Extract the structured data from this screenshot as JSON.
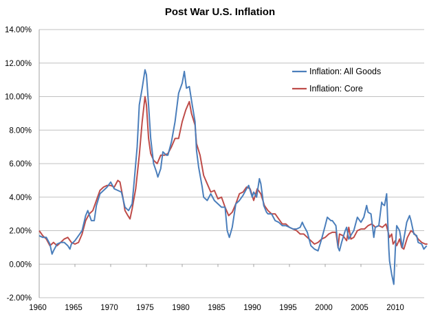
{
  "chart_data": {
    "type": "line",
    "title": "Post War U.S. Inflation",
    "xlabel": "",
    "ylabel": "",
    "xlim": [
      1960,
      2014
    ],
    "ylim": [
      -2,
      14
    ],
    "x_ticks": [
      "1960",
      "1965",
      "1970",
      "1975",
      "1980",
      "1985",
      "1990",
      "1995",
      "2000",
      "2005",
      "2010"
    ],
    "y_ticks": [
      "-2.00%",
      "0.00%",
      "2.00%",
      "4.00%",
      "6.00%",
      "8.00%",
      "10.00%",
      "12.00%",
      "14.00%"
    ],
    "grid": "horizontal",
    "legend_position": "top-right",
    "series": [
      {
        "name": "Inflation: All Goods",
        "color": "#4A7EBB",
        "points": [
          [
            1960,
            1.7
          ],
          [
            1960.5,
            1.6
          ],
          [
            1961,
            1.6
          ],
          [
            1961.5,
            1.2
          ],
          [
            1961.8,
            0.6
          ],
          [
            1962,
            0.8
          ],
          [
            1962.5,
            1.2
          ],
          [
            1963,
            1.3
          ],
          [
            1963.5,
            1.3
          ],
          [
            1964,
            1.1
          ],
          [
            1964.3,
            0.9
          ],
          [
            1964.5,
            1.2
          ],
          [
            1965,
            1.4
          ],
          [
            1965.5,
            1.7
          ],
          [
            1966,
            2.0
          ],
          [
            1966.5,
            2.9
          ],
          [
            1966.8,
            3.2
          ],
          [
            1967.3,
            2.6
          ],
          [
            1967.7,
            2.6
          ],
          [
            1968,
            3.5
          ],
          [
            1968.5,
            4.2
          ],
          [
            1969,
            4.4
          ],
          [
            1969.5,
            4.6
          ],
          [
            1970,
            4.9
          ],
          [
            1970.5,
            4.5
          ],
          [
            1971,
            4.4
          ],
          [
            1971.5,
            4.3
          ],
          [
            1972,
            3.4
          ],
          [
            1972.5,
            3.2
          ],
          [
            1973,
            3.6
          ],
          [
            1973.3,
            5.0
          ],
          [
            1973.7,
            7.0
          ],
          [
            1974,
            9.5
          ],
          [
            1974.4,
            10.5
          ],
          [
            1974.8,
            11.6
          ],
          [
            1975,
            11.3
          ],
          [
            1975.3,
            9.5
          ],
          [
            1975.6,
            7.5
          ],
          [
            1976,
            6.0
          ],
          [
            1976.4,
            5.5
          ],
          [
            1976.6,
            5.2
          ],
          [
            1977,
            5.7
          ],
          [
            1977.3,
            6.7
          ],
          [
            1977.8,
            6.5
          ],
          [
            1978,
            6.5
          ],
          [
            1978.5,
            7.3
          ],
          [
            1979,
            8.5
          ],
          [
            1979.5,
            10.2
          ],
          [
            1980,
            10.8
          ],
          [
            1980.3,
            11.5
          ],
          [
            1980.6,
            10.5
          ],
          [
            1981,
            10.6
          ],
          [
            1981.4,
            9.5
          ],
          [
            1981.8,
            8.5
          ],
          [
            1982,
            6.8
          ],
          [
            1982.3,
            5.8
          ],
          [
            1982.8,
            4.6
          ],
          [
            1983,
            4.0
          ],
          [
            1983.5,
            3.8
          ],
          [
            1984,
            4.2
          ],
          [
            1984.5,
            3.8
          ],
          [
            1985,
            3.6
          ],
          [
            1985.5,
            3.4
          ],
          [
            1986,
            3.4
          ],
          [
            1986.3,
            2.0
          ],
          [
            1986.6,
            1.6
          ],
          [
            1987,
            2.2
          ],
          [
            1987.5,
            3.6
          ],
          [
            1988,
            3.8
          ],
          [
            1988.5,
            4.1
          ],
          [
            1989,
            4.5
          ],
          [
            1989.3,
            4.7
          ],
          [
            1989.8,
            4.0
          ],
          [
            1990,
            4.3
          ],
          [
            1990.4,
            4.0
          ],
          [
            1990.8,
            5.1
          ],
          [
            1991,
            4.8
          ],
          [
            1991.4,
            3.5
          ],
          [
            1991.8,
            3.1
          ],
          [
            1992,
            3.0
          ],
          [
            1992.5,
            3.0
          ],
          [
            1993,
            2.6
          ],
          [
            1993.5,
            2.5
          ],
          [
            1994,
            2.3
          ],
          [
            1994.5,
            2.3
          ],
          [
            1995,
            2.2
          ],
          [
            1995.5,
            2.1
          ],
          [
            1996,
            2.1
          ],
          [
            1996.5,
            2.2
          ],
          [
            1996.8,
            2.5
          ],
          [
            1997,
            2.3
          ],
          [
            1997.5,
            1.9
          ],
          [
            1998,
            1.1
          ],
          [
            1998.5,
            0.9
          ],
          [
            1999,
            0.8
          ],
          [
            1999.5,
            1.5
          ],
          [
            2000,
            2.3
          ],
          [
            2000.3,
            2.8
          ],
          [
            2000.8,
            2.6
          ],
          [
            2001,
            2.6
          ],
          [
            2001.5,
            2.3
          ],
          [
            2001.8,
            1.0
          ],
          [
            2002,
            0.8
          ],
          [
            2002.3,
            1.3
          ],
          [
            2002.8,
            2.0
          ],
          [
            2003,
            2.2
          ],
          [
            2003.3,
            1.5
          ],
          [
            2003.7,
            1.8
          ],
          [
            2004,
            2.0
          ],
          [
            2004.5,
            2.8
          ],
          [
            2005,
            2.5
          ],
          [
            2005.4,
            2.8
          ],
          [
            2005.8,
            3.5
          ],
          [
            2006,
            3.1
          ],
          [
            2006.4,
            3.0
          ],
          [
            2006.8,
            1.6
          ],
          [
            2007,
            2.2
          ],
          [
            2007.5,
            2.3
          ],
          [
            2007.9,
            3.7
          ],
          [
            2008,
            3.6
          ],
          [
            2008.3,
            3.5
          ],
          [
            2008.6,
            4.2
          ],
          [
            2008.9,
            0.9
          ],
          [
            2009,
            0.2
          ],
          [
            2009.3,
            -0.6
          ],
          [
            2009.6,
            -1.2
          ],
          [
            2009.8,
            0.8
          ],
          [
            2010,
            2.3
          ],
          [
            2010.4,
            2.0
          ],
          [
            2010.8,
            1.0
          ],
          [
            2011,
            1.5
          ],
          [
            2011.4,
            2.5
          ],
          [
            2011.8,
            2.9
          ],
          [
            2012,
            2.6
          ],
          [
            2012.4,
            1.8
          ],
          [
            2012.8,
            1.7
          ],
          [
            2013,
            1.3
          ],
          [
            2013.5,
            1.2
          ],
          [
            2013.8,
            0.9
          ],
          [
            2014.2,
            1.1
          ]
        ]
      },
      {
        "name": "Inflation: Core",
        "color": "#BE4B48",
        "points": [
          [
            1960,
            2.0
          ],
          [
            1960.5,
            1.7
          ],
          [
            1961,
            1.5
          ],
          [
            1961.5,
            1.1
          ],
          [
            1962,
            1.3
          ],
          [
            1962.5,
            1.1
          ],
          [
            1963,
            1.3
          ],
          [
            1963.5,
            1.5
          ],
          [
            1964,
            1.6
          ],
          [
            1964.5,
            1.3
          ],
          [
            1965,
            1.2
          ],
          [
            1965.5,
            1.3
          ],
          [
            1966,
            1.8
          ],
          [
            1966.5,
            2.6
          ],
          [
            1967,
            3.0
          ],
          [
            1967.5,
            3.2
          ],
          [
            1968,
            3.8
          ],
          [
            1968.5,
            4.4
          ],
          [
            1969,
            4.6
          ],
          [
            1969.5,
            4.7
          ],
          [
            1970,
            4.7
          ],
          [
            1970.5,
            4.6
          ],
          [
            1971,
            5.0
          ],
          [
            1971.3,
            4.9
          ],
          [
            1971.7,
            4.0
          ],
          [
            1972,
            3.2
          ],
          [
            1972.4,
            2.9
          ],
          [
            1972.7,
            2.7
          ],
          [
            1973,
            3.3
          ],
          [
            1973.5,
            4.5
          ],
          [
            1974,
            6.5
          ],
          [
            1974.4,
            8.5
          ],
          [
            1974.8,
            10.0
          ],
          [
            1975,
            9.5
          ],
          [
            1975.3,
            7.5
          ],
          [
            1975.6,
            6.6
          ],
          [
            1976,
            6.2
          ],
          [
            1976.5,
            6.0
          ],
          [
            1977,
            6.5
          ],
          [
            1977.5,
            6.5
          ],
          [
            1978,
            6.6
          ],
          [
            1978.5,
            7.0
          ],
          [
            1979,
            7.5
          ],
          [
            1979.5,
            7.5
          ],
          [
            1980,
            8.5
          ],
          [
            1980.5,
            9.2
          ],
          [
            1981,
            9.7
          ],
          [
            1981.3,
            9.0
          ],
          [
            1981.8,
            8.3
          ],
          [
            1982,
            7.2
          ],
          [
            1982.5,
            6.5
          ],
          [
            1983,
            5.3
          ],
          [
            1983.5,
            4.8
          ],
          [
            1984,
            4.3
          ],
          [
            1984.5,
            4.4
          ],
          [
            1985,
            3.9
          ],
          [
            1985.5,
            4.0
          ],
          [
            1986,
            3.4
          ],
          [
            1986.5,
            2.9
          ],
          [
            1987,
            3.1
          ],
          [
            1987.5,
            3.6
          ],
          [
            1988,
            4.2
          ],
          [
            1988.5,
            4.3
          ],
          [
            1989,
            4.6
          ],
          [
            1989.5,
            4.5
          ],
          [
            1990,
            3.8
          ],
          [
            1990.5,
            4.5
          ],
          [
            1991,
            4.2
          ],
          [
            1991.5,
            3.5
          ],
          [
            1992,
            3.2
          ],
          [
            1992.5,
            3.0
          ],
          [
            1993,
            3.0
          ],
          [
            1993.5,
            2.7
          ],
          [
            1994,
            2.4
          ],
          [
            1994.5,
            2.4
          ],
          [
            1995,
            2.2
          ],
          [
            1995.5,
            2.1
          ],
          [
            1996,
            2.0
          ],
          [
            1996.5,
            1.8
          ],
          [
            1997,
            1.8
          ],
          [
            1997.5,
            1.6
          ],
          [
            1998,
            1.4
          ],
          [
            1998.5,
            1.2
          ],
          [
            1999,
            1.3
          ],
          [
            1999.5,
            1.5
          ],
          [
            2000,
            1.6
          ],
          [
            2000.5,
            1.8
          ],
          [
            2001,
            1.9
          ],
          [
            2001.5,
            1.9
          ],
          [
            2001.8,
            1.0
          ],
          [
            2002,
            1.8
          ],
          [
            2002.5,
            1.7
          ],
          [
            2003,
            1.4
          ],
          [
            2003.3,
            2.2
          ],
          [
            2003.6,
            1.5
          ],
          [
            2004,
            1.6
          ],
          [
            2004.5,
            2.0
          ],
          [
            2005,
            2.1
          ],
          [
            2005.5,
            2.1
          ],
          [
            2006,
            2.3
          ],
          [
            2006.5,
            2.4
          ],
          [
            2006.8,
            2.3
          ],
          [
            2007,
            2.2
          ],
          [
            2007.5,
            2.3
          ],
          [
            2008,
            2.2
          ],
          [
            2008.5,
            2.4
          ],
          [
            2009,
            1.6
          ],
          [
            2009.3,
            1.8
          ],
          [
            2009.5,
            1.2
          ],
          [
            2009.8,
            1.4
          ],
          [
            2010,
            1.1
          ],
          [
            2010.4,
            1.5
          ],
          [
            2010.7,
            1.0
          ],
          [
            2011,
            0.9
          ],
          [
            2011.5,
            1.6
          ],
          [
            2012,
            2.0
          ],
          [
            2012.3,
            1.9
          ],
          [
            2012.7,
            1.7
          ],
          [
            2013,
            1.5
          ],
          [
            2013.5,
            1.3
          ],
          [
            2014,
            1.2
          ],
          [
            2014.3,
            1.2
          ]
        ]
      }
    ]
  }
}
